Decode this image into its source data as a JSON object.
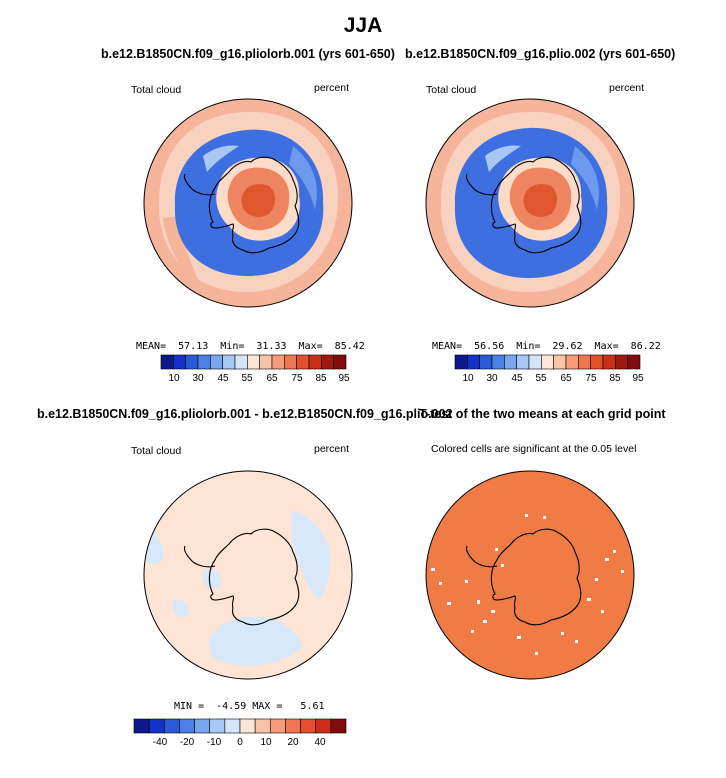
{
  "figure": {
    "season_title": "JJA"
  },
  "panels": {
    "top_left": {
      "title": "b.e12.B1850CN.f09_g16.pliolorb.001 (yrs 601-650)",
      "left_label": "Total cloud",
      "right_label": "percent",
      "stats": "MEAN=  57.13  Min=  31.33  Max=  85.42"
    },
    "top_right": {
      "title": "b.e12.B1850CN.f09_g16.plio.002 (yrs 601-650)",
      "left_label": "Total cloud",
      "right_label": "percent",
      "stats": "MEAN=  56.56  Min=  29.62  Max=  86.22"
    },
    "bottom_left": {
      "title": "b.e12.B1850CN.f09_g16.pliolorb.001 - b.e12.B1850CN.f09_g16.plio.002",
      "left_label": "Total cloud",
      "right_label": "percent",
      "stats": "MIN =  -4.59 MAX =   5.61"
    },
    "bottom_right": {
      "title": "T-test of the two means at each grid point",
      "subtitle": "Colored cells are significant at the 0.05 level"
    }
  },
  "colorbars": {
    "top": {
      "tick_labels": [
        "10",
        "30",
        "45",
        "55",
        "65",
        "75",
        "85",
        "95"
      ],
      "colors": [
        "#0a1a8c",
        "#1432c8",
        "#2a5ad8",
        "#4a80e6",
        "#7aa6ee",
        "#a8c8f4",
        "#d4e4fa",
        "#fbe6d8",
        "#f8c4a8",
        "#f49c7c",
        "#ee7650",
        "#e4502c",
        "#c8301a",
        "#a01810",
        "#800c0c"
      ]
    },
    "bottom": {
      "tick_labels": [
        "-40",
        "-20",
        "-10",
        "0",
        "10",
        "20",
        "40"
      ],
      "colors": [
        "#0a1a8c",
        "#1432c8",
        "#2a5ad8",
        "#4a80e6",
        "#7aa6ee",
        "#a8c8f4",
        "#d4e4fa",
        "#fbe6d8",
        "#f8c4a8",
        "#f49c7c",
        "#ee7650",
        "#e4502c",
        "#c8301a",
        "#800c0c"
      ]
    }
  },
  "map_colors": {
    "ocean_low_lat": "#f6b49a",
    "ocean_mid": "#f9d2bf",
    "storm_track": "#3d6fe0",
    "storm_track_inner": "#6e9aee",
    "storm_track_light": "#a9c7f4",
    "continent_interior": "#ef8460",
    "continent_core": "#e0562f",
    "continent_edge": "#fcdcc8",
    "diff_base": "#fde4d4",
    "diff_negative": "#d8e8fb",
    "ttest_fill": "#f07b45"
  }
}
